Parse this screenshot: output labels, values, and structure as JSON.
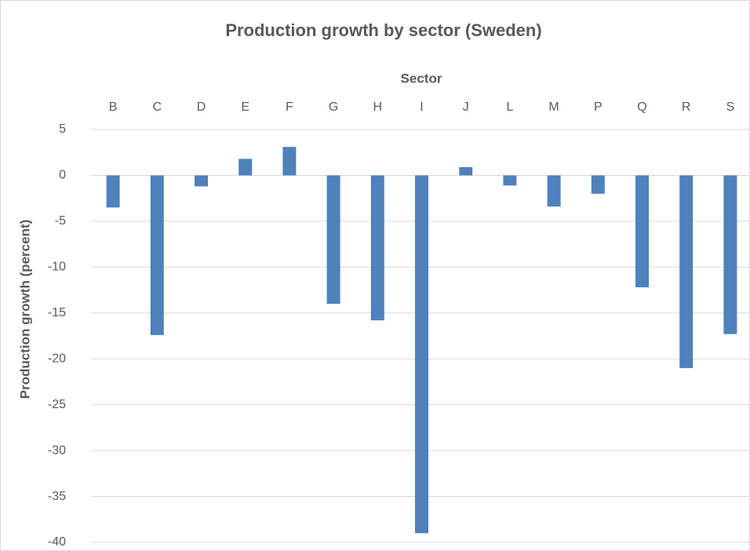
{
  "chart_data": {
    "type": "bar",
    "title": "Production growth by sector (Sweden)",
    "x_label": "Sector",
    "y_label": "Production growth (percent)",
    "categories": [
      "B",
      "C",
      "D",
      "E",
      "F",
      "G",
      "H",
      "I",
      "J",
      "L",
      "M",
      "P",
      "Q",
      "R",
      "S"
    ],
    "values": [
      -3.5,
      -17.4,
      -1.2,
      1.8,
      3.1,
      -14,
      -15.8,
      -39,
      0.9,
      -1.1,
      -3.4,
      -2,
      -12.2,
      -21,
      -17.3
    ],
    "color": "#4f81bd",
    "ylim": [
      -40,
      5
    ],
    "yticks": [
      5,
      0,
      -5,
      -10,
      -15,
      -20,
      -25,
      -30,
      -35,
      -40
    ],
    "grid": true
  }
}
